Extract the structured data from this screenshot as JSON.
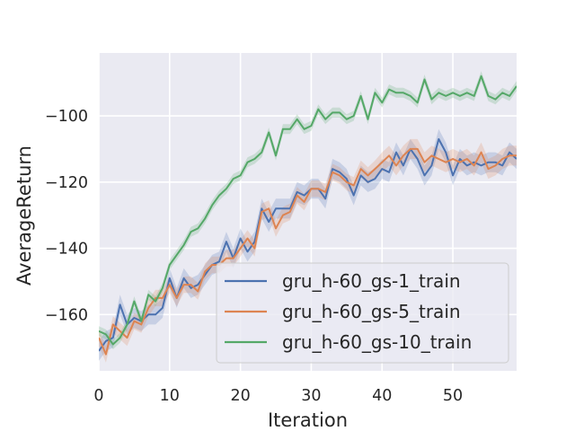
{
  "chart_data": {
    "type": "line",
    "title": "",
    "xlabel": "Iteration",
    "ylabel": "AverageReturn",
    "xlim": [
      0,
      59
    ],
    "ylim": [
      -177,
      -81
    ],
    "xticks": [
      0,
      10,
      20,
      30,
      40,
      50
    ],
    "xtick_labels": [
      "0",
      "10",
      "20",
      "30",
      "40",
      "50"
    ],
    "yticks": [
      -160,
      -140,
      -120,
      -100
    ],
    "ytick_labels": [
      "−160",
      "−140",
      "−120",
      "−100"
    ],
    "grid": true,
    "legend_position": "lower right",
    "colors": {
      "background": "#eaeaf2",
      "grid": "#ffffff",
      "series": [
        "#4c72b0",
        "#dd8452",
        "#55a868"
      ]
    },
    "series": [
      {
        "name": "gru_h-60_gs-1_train",
        "color": "#4c72b0",
        "values": [
          -171,
          -168,
          -167,
          -157,
          -163,
          -161,
          -162,
          -160,
          -160,
          -158,
          -149,
          -155,
          -149,
          -152,
          -151,
          -148,
          -145,
          -144,
          -138,
          -143,
          -137,
          -141,
          -138,
          -128,
          -132,
          -128,
          -128,
          -128,
          -123,
          -124,
          -122,
          -122,
          -125,
          -116,
          -117,
          -119,
          -124,
          -118,
          -120,
          -119,
          -116,
          -117,
          -111,
          -115,
          -110,
          -113,
          -118,
          -115,
          -107,
          -111,
          -118,
          -113,
          -115,
          -114,
          -115,
          -114,
          -114,
          -115,
          -111,
          -113
        ],
        "band": [
          3,
          3,
          3,
          3,
          3,
          3,
          3,
          3,
          3,
          3,
          3,
          3,
          3,
          3,
          3,
          3,
          3,
          3,
          3,
          3,
          3,
          3,
          3,
          3,
          3,
          3,
          3,
          3,
          3,
          3,
          3,
          3,
          3,
          3,
          3,
          3,
          3,
          3,
          3,
          3,
          3,
          3,
          3,
          3,
          3,
          3,
          3,
          3,
          3,
          3,
          3,
          3,
          3,
          3,
          3,
          3,
          3,
          3,
          3,
          3
        ]
      },
      {
        "name": "gru_h-60_gs-5_train",
        "color": "#dd8452",
        "values": [
          -167,
          -172,
          -163,
          -165,
          -167,
          -162,
          -163,
          -158,
          -155,
          -155,
          -151,
          -155,
          -151,
          -151,
          -153,
          -147,
          -145,
          -145,
          -143,
          -143,
          -140,
          -137,
          -140,
          -129,
          -128,
          -134,
          -130,
          -129,
          -124,
          -126,
          -122,
          -122,
          -123,
          -117,
          -118,
          -120,
          -121,
          -116,
          -118,
          -116,
          -114,
          -112,
          -115,
          -112,
          -110,
          -110,
          -114,
          -112,
          -113,
          -114,
          -113,
          -114,
          -113,
          -115,
          -111,
          -116,
          -115,
          -113,
          -112,
          -112
        ],
        "band": [
          2.5,
          2.5,
          2.5,
          2.5,
          2.5,
          2.5,
          2.5,
          2.5,
          2.5,
          2.5,
          2.5,
          2.5,
          2.5,
          2.5,
          2.5,
          2.5,
          2.5,
          2.5,
          2.5,
          2.5,
          2.5,
          2.5,
          2.5,
          2.5,
          2.5,
          2.5,
          2.5,
          2.5,
          2.5,
          2.5,
          2.5,
          2.5,
          2.5,
          2.5,
          2.5,
          2.5,
          2.5,
          2.5,
          2.5,
          2.5,
          3,
          3,
          3,
          3,
          3,
          3,
          3,
          3,
          3,
          3,
          3,
          3,
          3,
          3,
          3,
          3,
          3,
          3,
          3,
          3
        ]
      },
      {
        "name": "gru_h-60_gs-10_train",
        "color": "#55a868",
        "values": [
          -165,
          -166,
          -169,
          -167,
          -163,
          -156,
          -162,
          -154,
          -156,
          -152,
          -145,
          -142,
          -139,
          -135,
          -134,
          -131,
          -127,
          -124,
          -122,
          -119,
          -118,
          -114,
          -113,
          -111,
          -105,
          -112,
          -104,
          -104,
          -101,
          -104,
          -103,
          -98,
          -101,
          -99,
          -99,
          -101,
          -100,
          -94,
          -101,
          -93,
          -96,
          -92,
          -93,
          -93,
          -94,
          -96,
          -89,
          -95,
          -93,
          -94,
          -93,
          -94,
          -93,
          -94,
          -88,
          -94,
          -95,
          -93,
          -94,
          -91
        ],
        "band": [
          1.5,
          1.5,
          1.5,
          1.5,
          1.5,
          1.5,
          1.5,
          1.5,
          1.5,
          1.5,
          1.5,
          1.5,
          1.5,
          1.5,
          1.5,
          1.5,
          1.5,
          1.5,
          1.5,
          1.5,
          1.5,
          1.5,
          1.5,
          1.5,
          1.5,
          1.5,
          1.5,
          1.5,
          1.5,
          1.5,
          1.5,
          1.5,
          1.5,
          1.5,
          1.5,
          1.5,
          1.5,
          1.5,
          1.5,
          1.5,
          1.5,
          1.5,
          1.5,
          1.5,
          1.5,
          1.5,
          1.5,
          1.5,
          1.5,
          1.5,
          1.5,
          1.5,
          1.5,
          1.5,
          1.5,
          1.5,
          1.5,
          1.5,
          1.5,
          1.5
        ]
      }
    ]
  }
}
